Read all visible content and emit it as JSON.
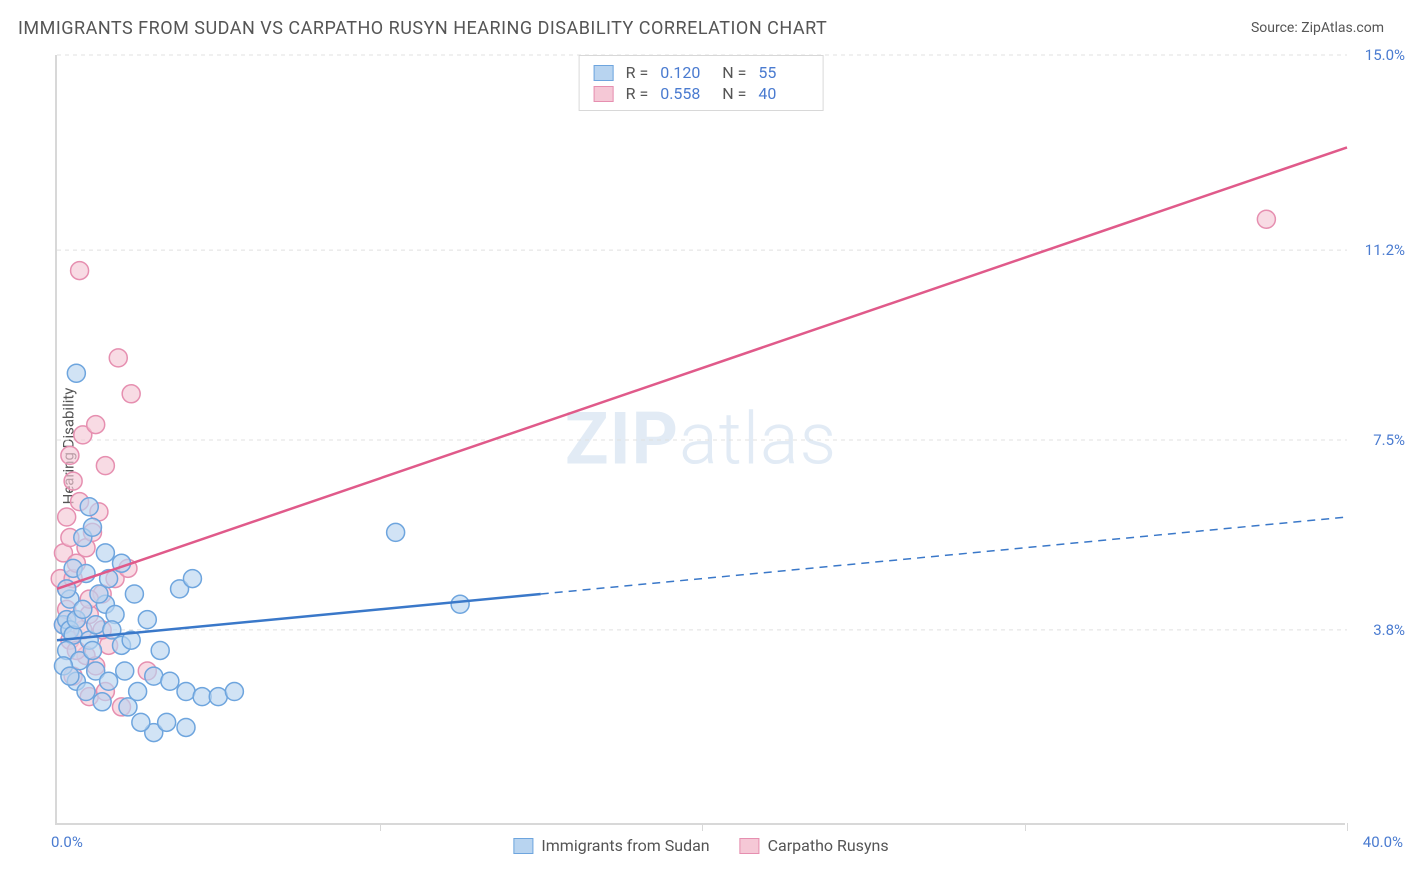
{
  "title": "IMMIGRANTS FROM SUDAN VS CARPATHO RUSYN HEARING DISABILITY CORRELATION CHART",
  "source": "Source: ZipAtlas.com",
  "y_axis_label": "Hearing Disability",
  "watermark_zip": "ZIP",
  "watermark_atlas": "atlas",
  "chart": {
    "type": "scatter+regression",
    "xlim": [
      0,
      40
    ],
    "ylim": [
      0,
      15
    ],
    "y_ticks": [
      3.8,
      7.5,
      11.2,
      15.0
    ],
    "x_min_label": "0.0%",
    "x_max_label": "40.0%",
    "x_tick_positions": [
      0,
      10,
      20,
      30,
      40
    ],
    "background_color": "#ffffff",
    "grid_color": "#e0e0e0",
    "axis_color": "#d8d8d8",
    "tick_label_color": "#4a7bd0",
    "marker_radius": 9,
    "marker_stroke_width": 1.5,
    "line_width": 2.5
  },
  "series": {
    "sudan": {
      "label": "Immigrants from Sudan",
      "fill_color": "#b8d4f0",
      "stroke_color": "#6ea5de",
      "line_color": "#3a78c9",
      "R": "0.120",
      "N": "55",
      "regression": {
        "x1": 0,
        "y1": 3.6,
        "x2": 40,
        "y2": 6.0,
        "solid_until_x": 15
      },
      "points": [
        [
          0.2,
          3.9
        ],
        [
          0.3,
          4.0
        ],
        [
          0.4,
          3.8
        ],
        [
          0.5,
          3.7
        ],
        [
          0.6,
          4.0
        ],
        [
          0.4,
          4.4
        ],
        [
          0.8,
          4.2
        ],
        [
          1.0,
          3.6
        ],
        [
          1.2,
          3.9
        ],
        [
          0.3,
          4.6
        ],
        [
          0.5,
          5.0
        ],
        [
          0.9,
          4.9
        ],
        [
          1.5,
          4.3
        ],
        [
          1.8,
          4.1
        ],
        [
          2.0,
          3.5
        ],
        [
          1.2,
          3.0
        ],
        [
          1.6,
          2.8
        ],
        [
          2.1,
          3.0
        ],
        [
          2.5,
          2.6
        ],
        [
          3.0,
          2.9
        ],
        [
          3.5,
          2.8
        ],
        [
          4.0,
          2.6
        ],
        [
          3.2,
          3.4
        ],
        [
          2.8,
          4.0
        ],
        [
          3.8,
          4.6
        ],
        [
          4.2,
          4.8
        ],
        [
          1.5,
          5.3
        ],
        [
          2.0,
          5.1
        ],
        [
          0.8,
          5.6
        ],
        [
          1.1,
          5.8
        ],
        [
          4.5,
          2.5
        ],
        [
          5.0,
          2.5
        ],
        [
          5.5,
          2.6
        ],
        [
          3.0,
          1.8
        ],
        [
          4.0,
          1.9
        ],
        [
          0.6,
          2.8
        ],
        [
          1.4,
          2.4
        ],
        [
          2.2,
          2.3
        ],
        [
          2.6,
          2.0
        ],
        [
          3.4,
          2.0
        ],
        [
          1.0,
          6.2
        ],
        [
          10.5,
          5.7
        ],
        [
          12.5,
          4.3
        ],
        [
          0.6,
          8.8
        ],
        [
          0.3,
          3.4
        ],
        [
          0.7,
          3.2
        ],
        [
          1.1,
          3.4
        ],
        [
          1.3,
          4.5
        ],
        [
          1.7,
          3.8
        ],
        [
          2.3,
          3.6
        ],
        [
          0.2,
          3.1
        ],
        [
          0.4,
          2.9
        ],
        [
          0.9,
          2.6
        ],
        [
          1.6,
          4.8
        ],
        [
          2.4,
          4.5
        ]
      ]
    },
    "carpatho": {
      "label": "Carpatho Rusyns",
      "fill_color": "#f5c8d6",
      "stroke_color": "#e68fb0",
      "line_color": "#e05a8a",
      "R": "0.558",
      "N": "40",
      "regression": {
        "x1": 0,
        "y1": 4.6,
        "x2": 40,
        "y2": 13.2,
        "solid_until_x": 40
      },
      "points": [
        [
          0.1,
          4.8
        ],
        [
          0.3,
          4.6
        ],
        [
          0.5,
          4.8
        ],
        [
          0.2,
          5.3
        ],
        [
          0.6,
          5.1
        ],
        [
          0.4,
          5.6
        ],
        [
          0.9,
          5.4
        ],
        [
          0.3,
          6.0
        ],
        [
          0.7,
          6.3
        ],
        [
          1.1,
          5.7
        ],
        [
          0.5,
          6.7
        ],
        [
          1.3,
          6.1
        ],
        [
          0.2,
          3.9
        ],
        [
          0.4,
          3.6
        ],
        [
          0.8,
          3.8
        ],
        [
          0.3,
          4.2
        ],
        [
          0.6,
          4.0
        ],
        [
          1.0,
          4.1
        ],
        [
          1.4,
          4.5
        ],
        [
          0.9,
          3.3
        ],
        [
          1.2,
          3.1
        ],
        [
          1.6,
          3.5
        ],
        [
          1.8,
          4.8
        ],
        [
          2.2,
          5.0
        ],
        [
          0.4,
          7.2
        ],
        [
          0.8,
          7.6
        ],
        [
          1.2,
          7.8
        ],
        [
          1.5,
          7.0
        ],
        [
          1.9,
          9.1
        ],
        [
          2.3,
          8.4
        ],
        [
          0.5,
          2.9
        ],
        [
          1.0,
          2.5
        ],
        [
          1.5,
          2.6
        ],
        [
          2.0,
          2.3
        ],
        [
          2.8,
          3.0
        ],
        [
          37.5,
          11.8
        ],
        [
          0.7,
          10.8
        ],
        [
          1.0,
          4.4
        ],
        [
          1.4,
          3.8
        ],
        [
          0.6,
          3.4
        ]
      ]
    }
  },
  "stats_box": {
    "R_label": "R  =",
    "N_label": "N  ="
  }
}
